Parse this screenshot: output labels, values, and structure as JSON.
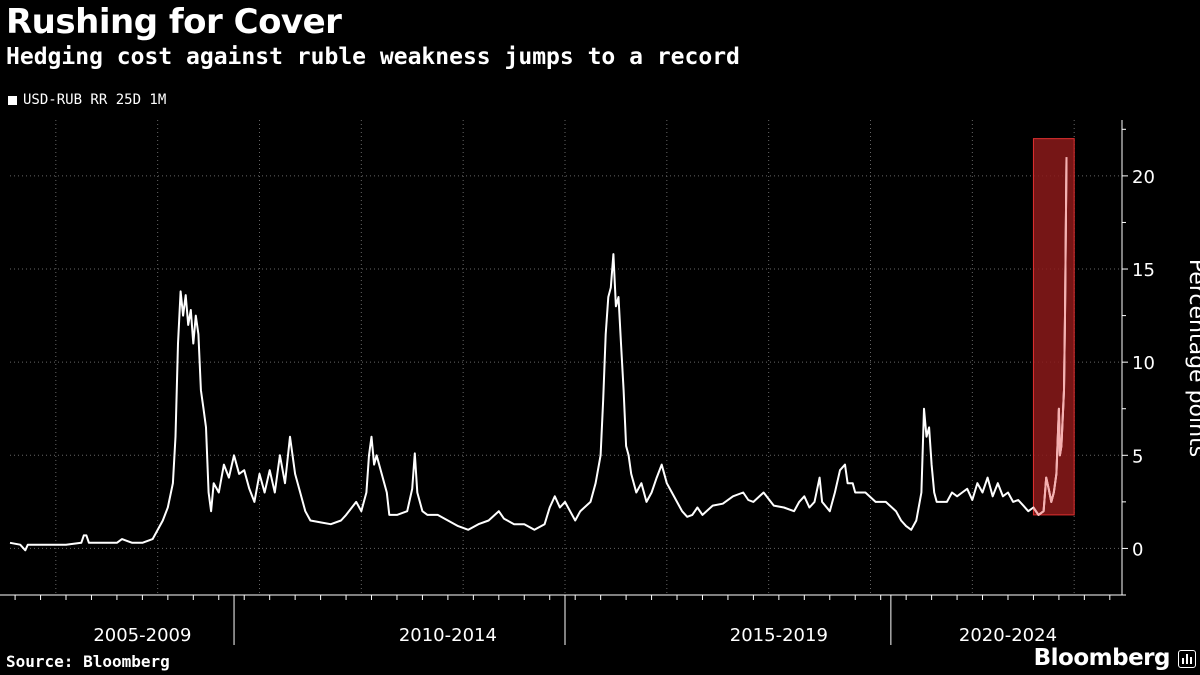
{
  "title": "Rushing for Cover",
  "subtitle": "Hedging cost against ruble weakness jumps to a record",
  "source": "Source: Bloomberg",
  "brand": "Bloomberg",
  "colors": {
    "background": "#000000",
    "line": "#ffffff",
    "highlight": "#8b1a1a",
    "highlight_border": "#e03030",
    "grid": "#666666"
  },
  "chart_data": {
    "type": "line",
    "title": "Rushing for Cover",
    "subtitle": "Hedging cost against ruble weakness jumps to a record",
    "ylabel": "Percentage points",
    "xlabel": "",
    "ylim": [
      -2.5,
      23
    ],
    "yticks": [
      0,
      5,
      10,
      15,
      20
    ],
    "xlim": [
      2003.4,
      2025.2
    ],
    "x_period_labels": [
      {
        "label": "2005-2009",
        "center": 2006.0
      },
      {
        "label": "2010-2014",
        "center": 2012.0
      },
      {
        "label": "2015-2019",
        "center": 2018.5
      },
      {
        "label": "2020-2024",
        "center": 2023.0
      }
    ],
    "x_period_separators": [
      2007.8,
      2014.3,
      2020.7
    ],
    "grid": true,
    "legend": "top-left",
    "highlight_range": {
      "x": [
        2023.5,
        2024.3
      ],
      "y": [
        1.8,
        22
      ]
    },
    "series": [
      {
        "name": "USD-RUB RR 25D 1M",
        "points": [
          [
            2003.4,
            0.3
          ],
          [
            2003.6,
            0.2
          ],
          [
            2003.7,
            -0.1
          ],
          [
            2003.75,
            0.2
          ],
          [
            2004.0,
            0.2
          ],
          [
            2004.5,
            0.2
          ],
          [
            2004.8,
            0.3
          ],
          [
            2004.85,
            0.7
          ],
          [
            2004.9,
            0.7
          ],
          [
            2004.95,
            0.3
          ],
          [
            2005.3,
            0.3
          ],
          [
            2005.5,
            0.3
          ],
          [
            2005.6,
            0.5
          ],
          [
            2005.8,
            0.3
          ],
          [
            2006.0,
            0.3
          ],
          [
            2006.2,
            0.5
          ],
          [
            2006.4,
            1.5
          ],
          [
            2006.5,
            2.2
          ],
          [
            2006.6,
            3.5
          ],
          [
            2006.65,
            6.0
          ],
          [
            2006.7,
            11.0
          ],
          [
            2006.75,
            13.8
          ],
          [
            2006.8,
            12.5
          ],
          [
            2006.85,
            13.6
          ],
          [
            2006.9,
            12.0
          ],
          [
            2006.95,
            12.8
          ],
          [
            2007.0,
            11.0
          ],
          [
            2007.05,
            12.5
          ],
          [
            2007.1,
            11.5
          ],
          [
            2007.15,
            8.5
          ],
          [
            2007.2,
            7.5
          ],
          [
            2007.25,
            6.5
          ],
          [
            2007.3,
            3.0
          ],
          [
            2007.35,
            2.0
          ],
          [
            2007.4,
            3.5
          ],
          [
            2007.5,
            3.0
          ],
          [
            2007.6,
            4.5
          ],
          [
            2007.7,
            3.8
          ],
          [
            2007.8,
            5.0
          ],
          [
            2007.9,
            4.0
          ],
          [
            2008.0,
            4.2
          ],
          [
            2008.1,
            3.2
          ],
          [
            2008.2,
            2.5
          ],
          [
            2008.3,
            4.0
          ],
          [
            2008.4,
            3.0
          ],
          [
            2008.5,
            4.2
          ],
          [
            2008.6,
            3.0
          ],
          [
            2008.7,
            5.0
          ],
          [
            2008.8,
            3.5
          ],
          [
            2008.9,
            6.0
          ],
          [
            2009.0,
            4.0
          ],
          [
            2009.1,
            3.0
          ],
          [
            2009.2,
            2.0
          ],
          [
            2009.3,
            1.5
          ],
          [
            2009.5,
            1.4
          ],
          [
            2009.7,
            1.3
          ],
          [
            2009.9,
            1.5
          ],
          [
            2010.0,
            1.8
          ],
          [
            2010.2,
            2.5
          ],
          [
            2010.3,
            2.0
          ],
          [
            2010.4,
            3.0
          ],
          [
            2010.45,
            5.0
          ],
          [
            2010.5,
            6.0
          ],
          [
            2010.55,
            4.5
          ],
          [
            2010.6,
            5.0
          ],
          [
            2010.7,
            4.0
          ],
          [
            2010.8,
            3.0
          ],
          [
            2010.85,
            1.8
          ],
          [
            2011.0,
            1.8
          ],
          [
            2011.2,
            2.0
          ],
          [
            2011.3,
            3.2
          ],
          [
            2011.35,
            5.1
          ],
          [
            2011.4,
            3.0
          ],
          [
            2011.5,
            2.0
          ],
          [
            2011.6,
            1.8
          ],
          [
            2011.8,
            1.8
          ],
          [
            2012.0,
            1.5
          ],
          [
            2012.2,
            1.2
          ],
          [
            2012.4,
            1.0
          ],
          [
            2012.6,
            1.3
          ],
          [
            2012.8,
            1.5
          ],
          [
            2013.0,
            2.0
          ],
          [
            2013.1,
            1.6
          ],
          [
            2013.3,
            1.3
          ],
          [
            2013.5,
            1.3
          ],
          [
            2013.7,
            1.0
          ],
          [
            2013.9,
            1.3
          ],
          [
            2014.0,
            2.2
          ],
          [
            2014.1,
            2.8
          ],
          [
            2014.2,
            2.2
          ],
          [
            2014.3,
            2.5
          ],
          [
            2014.4,
            2.0
          ],
          [
            2014.5,
            1.5
          ],
          [
            2014.6,
            2.0
          ],
          [
            2014.8,
            2.5
          ],
          [
            2014.9,
            3.5
          ],
          [
            2015.0,
            5.0
          ],
          [
            2015.05,
            8.0
          ],
          [
            2015.1,
            11.5
          ],
          [
            2015.15,
            13.5
          ],
          [
            2015.2,
            14.0
          ],
          [
            2015.25,
            15.8
          ],
          [
            2015.3,
            13.0
          ],
          [
            2015.35,
            13.5
          ],
          [
            2015.4,
            11.0
          ],
          [
            2015.45,
            8.5
          ],
          [
            2015.5,
            5.5
          ],
          [
            2015.55,
            5.0
          ],
          [
            2015.6,
            4.0
          ],
          [
            2015.7,
            3.0
          ],
          [
            2015.8,
            3.5
          ],
          [
            2015.9,
            2.5
          ],
          [
            2016.0,
            3.0
          ],
          [
            2016.1,
            3.8
          ],
          [
            2016.2,
            4.5
          ],
          [
            2016.3,
            3.5
          ],
          [
            2016.4,
            3.0
          ],
          [
            2016.5,
            2.5
          ],
          [
            2016.6,
            2.0
          ],
          [
            2016.7,
            1.7
          ],
          [
            2016.8,
            1.8
          ],
          [
            2016.9,
            2.2
          ],
          [
            2017.0,
            1.8
          ],
          [
            2017.2,
            2.3
          ],
          [
            2017.4,
            2.4
          ],
          [
            2017.6,
            2.8
          ],
          [
            2017.8,
            3.0
          ],
          [
            2017.9,
            2.6
          ],
          [
            2018.0,
            2.5
          ],
          [
            2018.2,
            3.0
          ],
          [
            2018.4,
            2.3
          ],
          [
            2018.6,
            2.2
          ],
          [
            2018.8,
            2.0
          ],
          [
            2018.9,
            2.5
          ],
          [
            2019.0,
            2.8
          ],
          [
            2019.1,
            2.2
          ],
          [
            2019.2,
            2.5
          ],
          [
            2019.3,
            3.8
          ],
          [
            2019.35,
            2.5
          ],
          [
            2019.5,
            2.0
          ],
          [
            2019.6,
            3.0
          ],
          [
            2019.7,
            4.2
          ],
          [
            2019.8,
            4.5
          ],
          [
            2019.85,
            3.5
          ],
          [
            2019.95,
            3.5
          ],
          [
            2020.0,
            3.0
          ],
          [
            2020.2,
            3.0
          ],
          [
            2020.4,
            2.5
          ],
          [
            2020.6,
            2.5
          ],
          [
            2020.8,
            2.0
          ],
          [
            2020.9,
            1.5
          ],
          [
            2021.0,
            1.2
          ],
          [
            2021.1,
            1.0
          ],
          [
            2021.2,
            1.5
          ],
          [
            2021.3,
            3.0
          ],
          [
            2021.35,
            7.5
          ],
          [
            2021.4,
            6.0
          ],
          [
            2021.45,
            6.5
          ],
          [
            2021.5,
            4.5
          ],
          [
            2021.55,
            3.0
          ],
          [
            2021.6,
            2.5
          ],
          [
            2021.8,
            2.5
          ],
          [
            2021.9,
            3.0
          ],
          [
            2022.0,
            2.8
          ],
          [
            2022.1,
            3.0
          ],
          [
            2022.2,
            3.2
          ],
          [
            2022.3,
            2.6
          ],
          [
            2022.4,
            3.5
          ],
          [
            2022.5,
            3.0
          ],
          [
            2022.6,
            3.8
          ],
          [
            2022.7,
            2.8
          ],
          [
            2022.8,
            3.5
          ],
          [
            2022.9,
            2.8
          ],
          [
            2023.0,
            3.0
          ],
          [
            2023.1,
            2.5
          ],
          [
            2023.2,
            2.6
          ],
          [
            2023.3,
            2.3
          ],
          [
            2023.4,
            2.0
          ],
          [
            2023.5,
            2.2
          ],
          [
            2023.6,
            1.8
          ],
          [
            2023.7,
            2.0
          ],
          [
            2023.75,
            3.8
          ],
          [
            2023.8,
            3.2
          ],
          [
            2023.85,
            2.5
          ],
          [
            2023.9,
            3.0
          ],
          [
            2023.95,
            4.0
          ],
          [
            2024.0,
            7.5
          ],
          [
            2024.02,
            5.0
          ],
          [
            2024.05,
            5.5
          ],
          [
            2024.1,
            8.5
          ],
          [
            2024.12,
            12.5
          ],
          [
            2024.15,
            21.0
          ]
        ]
      }
    ]
  }
}
